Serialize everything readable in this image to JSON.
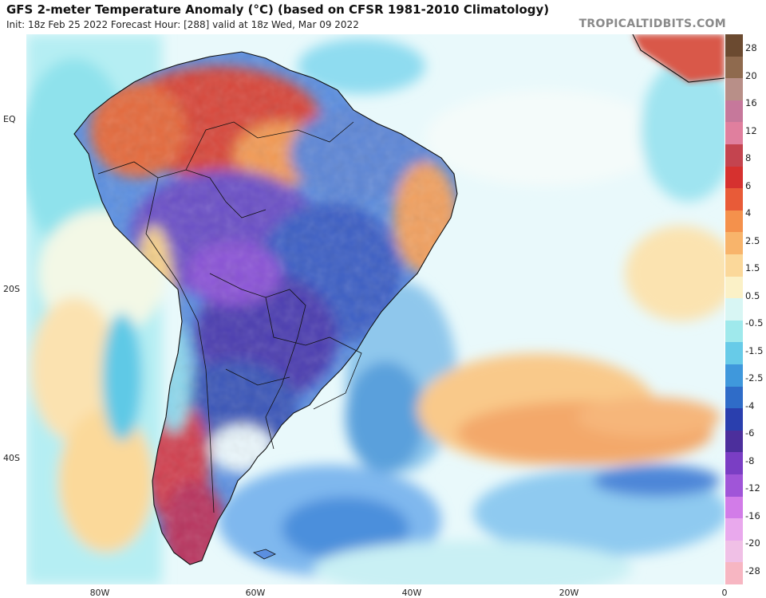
{
  "header": {
    "title": "GFS 2-meter Temperature Anomaly (°C) (based on CFSR 1981-2010 Climatology)",
    "subtitle": "Init: 18z Feb 25 2022   Forecast Hour: [288]   valid at 18z Wed, Mar 09 2022",
    "watermark": "TROPICALTIDBITS.COM"
  },
  "axes": {
    "lat_labels": [
      {
        "text": "EQ"
      },
      {
        "text": "20S"
      },
      {
        "text": "40S"
      }
    ],
    "lon_labels": [
      {
        "text": "80W"
      },
      {
        "text": "60W"
      },
      {
        "text": "40W"
      },
      {
        "text": "20W"
      },
      {
        "text": "0"
      }
    ]
  },
  "colorbar": {
    "labels": [
      "28",
      "20",
      "16",
      "12",
      "8",
      "6",
      "4",
      "2.5",
      "1.5",
      "0.5",
      "-0.5",
      "-1.5",
      "-2.5",
      "-4",
      "-6",
      "-8",
      "-12",
      "-16",
      "-20",
      "-28"
    ],
    "colors": [
      "#6b4a30",
      "#8f6a4e",
      "#b88f88",
      "#c6789b",
      "#e07f9e",
      "#c4444f",
      "#d6312f",
      "#e85b38",
      "#f4914c",
      "#f8b46b",
      "#fbd89a",
      "#fbf1c7",
      "#d8f6f4",
      "#9fe9ec",
      "#67cbe8",
      "#3f98dc",
      "#2f6cc8",
      "#2a3fae",
      "#4c2f9c",
      "#7a3ec4",
      "#a055d8",
      "#d27ce8",
      "#e9a9ed",
      "#f0c0e6",
      "#f7b6c2"
    ]
  }
}
